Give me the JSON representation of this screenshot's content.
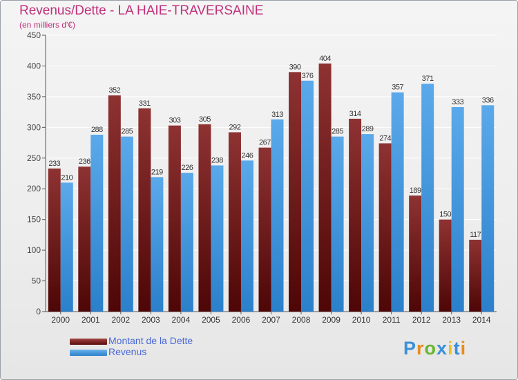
{
  "header": {
    "title": "Revenus/Dette - LA HAIE-TRAVERSAINE",
    "subtitle": "(en milliers d'€)"
  },
  "colors": {
    "title": "#c0307a",
    "dette": "#7a1818",
    "revenus": "#3f95dd",
    "grid": "#ffffff",
    "legend_text": "#4a68d6"
  },
  "legend": {
    "items": [
      {
        "label": "Montant de la Dette",
        "color": "#7a1818"
      },
      {
        "label": "Revenus",
        "color": "#3f95dd"
      }
    ]
  },
  "logo": {
    "text": "Proxiti",
    "letters": [
      {
        "ch": "P",
        "color": "#3b8fd8"
      },
      {
        "ch": "r",
        "color": "#e88a1e"
      },
      {
        "ch": "o",
        "color": "#6ab52e"
      },
      {
        "ch": "x",
        "color": "#3b8fd8"
      },
      {
        "ch": "i",
        "color": "#e8c31e"
      },
      {
        "ch": "t",
        "color": "#3b8fd8"
      },
      {
        "ch": "i",
        "color": "#e88a1e"
      }
    ]
  },
  "chart_data": {
    "type": "bar",
    "categories": [
      "2000",
      "2001",
      "2002",
      "2003",
      "2004",
      "2005",
      "2006",
      "2007",
      "2008",
      "2009",
      "2010",
      "2011",
      "2012",
      "2013",
      "2014"
    ],
    "series": [
      {
        "name": "Montant de la Dette",
        "values": [
          233,
          236,
          352,
          331,
          303,
          305,
          292,
          267,
          390,
          404,
          314,
          274,
          189,
          150,
          117
        ]
      },
      {
        "name": "Revenus",
        "values": [
          210,
          288,
          285,
          219,
          226,
          238,
          246,
          313,
          376,
          285,
          289,
          357,
          371,
          333,
          336
        ]
      }
    ],
    "ylim": [
      0,
      450
    ],
    "yticks": [
      0,
      50,
      100,
      150,
      200,
      250,
      300,
      350,
      400,
      450
    ],
    "grid": true,
    "legend_position": "bottom-left"
  }
}
